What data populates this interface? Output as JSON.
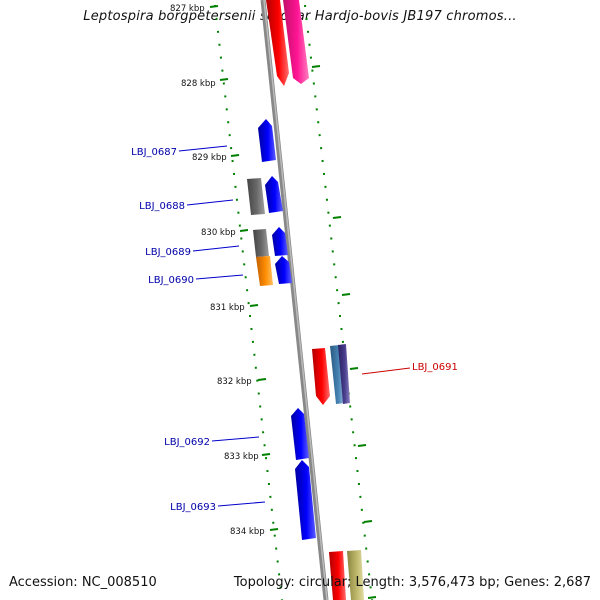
{
  "title": "Leptospira borgpetersenii serovar Hardjo-bovis JB197 chromos...",
  "accession": "Accession: NC_008510",
  "topology": "Topology: circular; Length: 3,576,473 bp; Genes: 2,687",
  "colors": {
    "blue": "#0000ff",
    "red": "#ff0000",
    "pink": "#ff1493",
    "gray": "#666666",
    "orange": "#ff8c00",
    "steel": "#4682b4",
    "slate": "#483d8b",
    "khaki": "#bdb76b",
    "tick": "#008000"
  },
  "kbp_labels": [
    "827 kbp",
    "828 kbp",
    "829 kbp",
    "830 kbp",
    "831 kbp",
    "832 kbp",
    "833 kbp",
    "834 kbp"
  ],
  "gene_labels": [
    "LBJ_0687",
    "LBJ_0688",
    "LBJ_0689",
    "LBJ_0690",
    "LBJ_0691",
    "LBJ_0692",
    "LBJ_0693"
  ]
}
